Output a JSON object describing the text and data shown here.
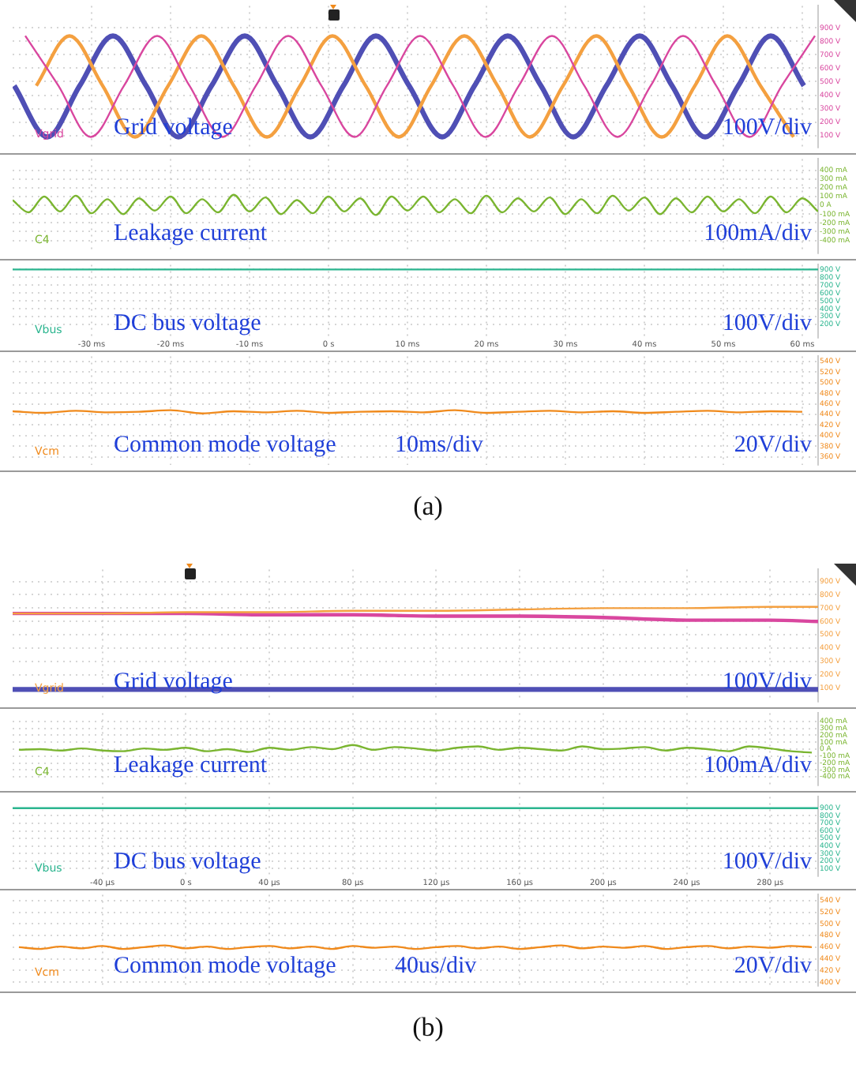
{
  "chart_data": [
    {
      "type": "line",
      "xlim": [
        -40,
        62
      ],
      "xticks": [
        -30,
        -20,
        -10,
        0,
        10,
        20,
        30,
        40,
        50,
        60
      ],
      "ylim": [
        13,
        1063
      ],
      "yticks": [
        {
          "value": 900,
          "label": "900 V"
        },
        {
          "value": 800,
          "label": "800 V"
        },
        {
          "value": 700,
          "label": "700 V"
        },
        {
          "value": 600,
          "label": "600 V"
        },
        {
          "value": 500,
          "label": "500 V"
        },
        {
          "value": 400,
          "label": "400 V"
        },
        {
          "value": 300,
          "label": "300 V"
        },
        {
          "value": 200,
          "label": "200 V"
        },
        {
          "value": 100,
          "label": "100 V"
        }
      ],
      "tick_labels": "y",
      "grid": true,
      "legend": false,
      "annotations": [
        "Vgrid",
        "Grid voltage",
        "100V/div"
      ],
      "series": [
        {
          "color": "#d9479f",
          "x": [
            -38.4,
            -34.2,
            -30.1,
            -25.9,
            -21.7,
            -17.6,
            -13.4,
            -9.2,
            -5.1,
            -0.9,
            3.3,
            7.4,
            11.6,
            15.8,
            19.9,
            24.1,
            28.3,
            32.4,
            36.6,
            40.8,
            44.9,
            49.1,
            53.3,
            57.4,
            61.6
          ],
          "values": [
            840,
            470,
            90,
            470,
            840,
            470,
            90,
            470,
            840,
            470,
            90,
            470,
            840,
            470,
            90,
            470,
            840,
            470,
            90,
            470,
            840,
            470,
            90,
            470,
            840
          ]
        },
        {
          "color": "#f4a040",
          "x": [
            -37.0,
            -32.8,
            -28.6,
            -24.5,
            -20.3,
            -16.1,
            -12.0,
            -7.8,
            -3.6,
            0.5,
            4.7,
            8.9,
            13.0,
            17.2,
            21.4,
            25.5,
            29.7,
            33.9,
            38.0,
            42.2,
            46.4,
            50.5,
            54.7,
            58.9
          ],
          "values": [
            470,
            840,
            470,
            90,
            470,
            840,
            470,
            90,
            470,
            840,
            470,
            90,
            470,
            840,
            470,
            90,
            470,
            840,
            470,
            90,
            470,
            840,
            470,
            90
          ]
        },
        {
          "color": "#4f4fb5",
          "x": [
            -39.8,
            -35.6,
            -31.5,
            -27.3,
            -23.1,
            -19.0,
            -14.8,
            -10.6,
            -6.5,
            -2.3,
            1.9,
            6.0,
            10.2,
            14.4,
            18.5,
            22.7,
            26.9,
            31.0,
            35.2,
            39.4,
            43.5,
            47.7,
            51.9,
            56.0,
            60.2
          ],
          "values": [
            470,
            90,
            470,
            840,
            470,
            90,
            470,
            840,
            470,
            90,
            470,
            840,
            470,
            90,
            470,
            840,
            470,
            90,
            470,
            840,
            470,
            90,
            470,
            840,
            470
          ]
        }
      ]
    },
    {
      "type": "line",
      "xlim": [
        -40,
        62
      ],
      "xticks": [
        -30,
        -20,
        -10,
        0,
        10,
        20,
        30,
        40,
        50,
        60
      ],
      "ylim": [
        -544,
        528
      ],
      "yticks": [
        {
          "value": 400,
          "label": "400 mA"
        },
        {
          "value": 300,
          "label": "300 mA"
        },
        {
          "value": 200,
          "label": "200 mA"
        },
        {
          "value": 100,
          "label": "100 mA"
        },
        {
          "value": 0,
          "label": "0 A"
        },
        {
          "value": -100,
          "label": "-100 mA"
        },
        {
          "value": -200,
          "label": "-200 mA"
        },
        {
          "value": -300,
          "label": "-300 mA"
        },
        {
          "value": -400,
          "label": "-400 mA"
        }
      ],
      "tick_labels": "y",
      "grid": true,
      "legend": false,
      "annotations": [
        "C4",
        "Leakage current",
        "100mA/div"
      ],
      "series": [
        {
          "color": "#7ab530",
          "x": [
            -40,
            -38,
            -36,
            -34,
            -32,
            -30,
            -28,
            -26,
            -24,
            -22,
            -20,
            -18,
            -16,
            -14,
            -12,
            -10,
            -8,
            -6,
            -4,
            -2,
            0,
            2,
            4,
            6,
            8,
            10,
            12,
            14,
            16,
            18,
            20,
            22,
            24,
            26,
            28,
            30,
            32,
            34,
            36,
            38,
            40,
            42,
            44,
            46,
            48,
            50,
            52,
            54,
            56,
            58,
            60,
            62
          ],
          "values": [
            60,
            -80,
            100,
            -70,
            110,
            -90,
            70,
            -100,
            80,
            -60,
            100,
            -90,
            70,
            -80,
            120,
            -70,
            90,
            -100,
            60,
            -90,
            100,
            -70,
            80,
            -110,
            100,
            -60,
            100,
            -80,
            70,
            -90,
            110,
            -80,
            80,
            -70,
            90,
            -100,
            70,
            -90,
            110,
            -60,
            90,
            -100,
            80,
            -80,
            100,
            -70,
            70,
            -90,
            100,
            -80,
            80,
            -70
          ]
        }
      ]
    },
    {
      "type": "line",
      "xlim": [
        -40,
        62
      ],
      "xticks": [
        {
          "value": -30,
          "label": "-30 ms"
        },
        {
          "value": -20,
          "label": "-20 ms"
        },
        {
          "value": -10,
          "label": "-10 ms"
        },
        {
          "value": 0,
          "label": "0 s"
        },
        {
          "value": 10,
          "label": "10 ms"
        },
        {
          "value": 20,
          "label": "20 ms"
        },
        {
          "value": 30,
          "label": "30 ms"
        },
        {
          "value": 40,
          "label": "40 ms"
        },
        {
          "value": 50,
          "label": "50 ms"
        },
        {
          "value": 60,
          "label": "60 ms"
        }
      ],
      "ylim": [
        30,
        960
      ],
      "yticks": [
        {
          "value": 900,
          "label": "900 V"
        },
        {
          "value": 800,
          "label": "800 V"
        },
        {
          "value": 700,
          "label": "700 V"
        },
        {
          "value": 600,
          "label": "600 V"
        },
        {
          "value": 500,
          "label": "500 V"
        },
        {
          "value": 400,
          "label": "400 V"
        },
        {
          "value": 300,
          "label": "300 V"
        },
        {
          "value": 200,
          "label": "200 V"
        }
      ],
      "grid": true,
      "legend": false,
      "annotations": [
        "Vbus",
        "DC bus voltage",
        "100V/div"
      ],
      "series": [
        {
          "color": "#2bb58f",
          "x": [
            -40,
            -20,
            0,
            20,
            40,
            62
          ],
          "values": [
            900,
            900,
            900,
            900,
            900,
            900
          ]
        }
      ]
    },
    {
      "type": "line",
      "xlim": [
        -40,
        62
      ],
      "xticks": [
        -30,
        -20,
        -10,
        0,
        10,
        20,
        30,
        40,
        50,
        60
      ],
      "ylim": [
        345,
        550
      ],
      "yticks": [
        {
          "value": 540,
          "label": "540 V"
        },
        {
          "value": 520,
          "label": "520 V"
        },
        {
          "value": 500,
          "label": "500 V"
        },
        {
          "value": 480,
          "label": "480 V"
        },
        {
          "value": 460,
          "label": "460 V"
        },
        {
          "value": 440,
          "label": "440 V"
        },
        {
          "value": 420,
          "label": "420 V"
        },
        {
          "value": 400,
          "label": "400 V"
        },
        {
          "value": 380,
          "label": "380 V"
        },
        {
          "value": 360,
          "label": "360 V"
        }
      ],
      "tick_labels": "y",
      "grid": true,
      "legend": false,
      "annotations": [
        "Vcm",
        "Common mode voltage",
        "20V/div",
        "10ms/div",
        "(a)"
      ],
      "series": [
        {
          "color": "#f08a1c",
          "x": [
            -40,
            -36,
            -32,
            -28,
            -24,
            -20,
            -16,
            -12,
            -8,
            -4,
            0,
            4,
            8,
            12,
            16,
            20,
            24,
            28,
            32,
            36,
            40,
            44,
            48,
            52,
            56,
            60
          ],
          "values": [
            446,
            443,
            447,
            444,
            445,
            448,
            442,
            446,
            444,
            447,
            443,
            445,
            446,
            444,
            448,
            443,
            445,
            447,
            444,
            446,
            443,
            445,
            447,
            444,
            446,
            445
          ]
        }
      ]
    },
    {
      "type": "line",
      "xlim": [
        -83,
        303
      ],
      "xticks": [
        -40,
        0,
        40,
        80,
        120,
        160,
        200,
        240,
        280
      ],
      "ylim": [
        0,
        990
      ],
      "yticks": [
        {
          "value": 900,
          "label": "900 V"
        },
        {
          "value": 800,
          "label": "800 V"
        },
        {
          "value": 700,
          "label": "700 V"
        },
        {
          "value": 600,
          "label": "600 V"
        },
        {
          "value": 500,
          "label": "500 V"
        },
        {
          "value": 400,
          "label": "400 V"
        },
        {
          "value": 300,
          "label": "300 V"
        },
        {
          "value": 200,
          "label": "200 V"
        },
        {
          "value": 100,
          "label": "100 V"
        }
      ],
      "tick_labels": "y",
      "grid": true,
      "legend": false,
      "annotations": [
        "Vgrid",
        "Grid voltage",
        "100V/div"
      ],
      "series": [
        {
          "color": "#f4a040",
          "x": [
            -83,
            -40,
            0,
            40,
            80,
            120,
            160,
            200,
            240,
            280,
            303
          ],
          "values": [
            660,
            660,
            670,
            670,
            680,
            680,
            690,
            700,
            700,
            710,
            710
          ]
        },
        {
          "color": "#d9479f",
          "x": [
            -83,
            -40,
            0,
            40,
            80,
            120,
            160,
            200,
            240,
            280,
            303
          ],
          "values": [
            660,
            660,
            660,
            650,
            650,
            640,
            640,
            630,
            610,
            610,
            600
          ]
        },
        {
          "color": "#4f4fb5",
          "x": [
            -83,
            -40,
            0,
            40,
            80,
            120,
            160,
            200,
            240,
            280,
            303
          ],
          "values": [
            90,
            90,
            90,
            90,
            90,
            90,
            90,
            90,
            90,
            90,
            90
          ]
        }
      ]
    },
    {
      "type": "line",
      "xlim": [
        -83,
        303
      ],
      "xticks": [
        -40,
        0,
        40,
        80,
        120,
        160,
        200,
        240,
        280
      ],
      "ylim": [
        -520,
        520
      ],
      "yticks": [
        {
          "value": 400,
          "label": "400 mA"
        },
        {
          "value": 300,
          "label": "300 mA"
        },
        {
          "value": 200,
          "label": "200 mA"
        },
        {
          "value": 100,
          "label": "100 mA"
        },
        {
          "value": 0,
          "label": "0 A"
        },
        {
          "value": -100,
          "label": "-100 mA"
        },
        {
          "value": -200,
          "label": "-200 mA"
        },
        {
          "value": -300,
          "label": "-300 mA"
        },
        {
          "value": -400,
          "label": "-400 mA"
        }
      ],
      "tick_labels": "y",
      "grid": true,
      "legend": false,
      "annotations": [
        "C4",
        "Leakage current",
        "100mA/div"
      ],
      "series": [
        {
          "color": "#7ab530",
          "x": [
            -80,
            -70,
            -60,
            -50,
            -40,
            -30,
            -20,
            -10,
            0,
            10,
            20,
            30,
            40,
            50,
            60,
            70,
            80,
            90,
            100,
            110,
            120,
            130,
            140,
            150,
            160,
            170,
            180,
            190,
            200,
            210,
            220,
            230,
            240,
            250,
            260,
            270,
            280,
            290,
            300
          ],
          "values": [
            -10,
            0,
            -20,
            10,
            -20,
            -30,
            10,
            -10,
            20,
            -30,
            0,
            -40,
            20,
            -10,
            30,
            0,
            60,
            -10,
            30,
            10,
            -20,
            20,
            40,
            -10,
            20,
            0,
            -20,
            40,
            0,
            10,
            30,
            -20,
            20,
            0,
            -30,
            40,
            10,
            -30,
            -50
          ]
        }
      ]
    },
    {
      "type": "line",
      "xlim": [
        -83,
        303
      ],
      "xticks": [
        {
          "value": -40,
          "label": "-40 µs"
        },
        {
          "value": 0,
          "label": "0 s"
        },
        {
          "value": 40,
          "label": "40 µs"
        },
        {
          "value": 80,
          "label": "80 µs"
        },
        {
          "value": 120,
          "label": "120 µs"
        },
        {
          "value": 160,
          "label": "160 µs"
        },
        {
          "value": 200,
          "label": "200 µs"
        },
        {
          "value": 240,
          "label": "240 µs"
        },
        {
          "value": 280,
          "label": "280 µs"
        }
      ],
      "ylim": [
        0,
        1050
      ],
      "yticks": [
        {
          "value": 900,
          "label": "900 V"
        },
        {
          "value": 800,
          "label": "800 V"
        },
        {
          "value": 700,
          "label": "700 V"
        },
        {
          "value": 600,
          "label": "600 V"
        },
        {
          "value": 500,
          "label": "500 V"
        },
        {
          "value": 400,
          "label": "400 V"
        },
        {
          "value": 300,
          "label": "300 V"
        },
        {
          "value": 200,
          "label": "200 V"
        },
        {
          "value": 100,
          "label": "100 V"
        }
      ],
      "grid": true,
      "legend": false,
      "annotations": [
        "Vbus",
        "DC bus voltage",
        "100V/div"
      ],
      "series": [
        {
          "color": "#2bb58f",
          "x": [
            -83,
            0,
            100,
            200,
            303
          ],
          "values": [
            900,
            900,
            900,
            900,
            900
          ]
        }
      ]
    },
    {
      "type": "line",
      "xlim": [
        -83,
        303
      ],
      "xticks": [
        -40,
        0,
        40,
        80,
        120,
        160,
        200,
        240,
        280
      ],
      "ylim": [
        394,
        550
      ],
      "yticks": [
        {
          "value": 540,
          "label": "540 V"
        },
        {
          "value": 520,
          "label": "520 V"
        },
        {
          "value": 500,
          "label": "500 V"
        },
        {
          "value": 480,
          "label": "480 V"
        },
        {
          "value": 460,
          "label": "460 V"
        },
        {
          "value": 440,
          "label": "440 V"
        },
        {
          "value": 420,
          "label": "420 V"
        },
        {
          "value": 400,
          "label": "400 V"
        }
      ],
      "tick_labels": "y",
      "grid": true,
      "legend": false,
      "annotations": [
        "Vcm",
        "Common mode voltage",
        "20V/div",
        "40us/div",
        "(b)"
      ],
      "series": [
        {
          "color": "#f08a1c",
          "x": [
            -80,
            -70,
            -60,
            -50,
            -40,
            -30,
            -20,
            -10,
            0,
            10,
            20,
            30,
            40,
            50,
            60,
            70,
            80,
            90,
            100,
            110,
            120,
            130,
            140,
            150,
            160,
            170,
            180,
            190,
            200,
            210,
            220,
            230,
            240,
            250,
            260,
            270,
            280,
            290,
            300
          ],
          "values": [
            460,
            457,
            461,
            458,
            462,
            457,
            460,
            463,
            458,
            461,
            457,
            460,
            462,
            458,
            461,
            457,
            462,
            459,
            461,
            457,
            460,
            462,
            458,
            461,
            457,
            460,
            463,
            458,
            461,
            459,
            462,
            457,
            460,
            462,
            458,
            461,
            459,
            462,
            460
          ]
        }
      ]
    }
  ]
}
